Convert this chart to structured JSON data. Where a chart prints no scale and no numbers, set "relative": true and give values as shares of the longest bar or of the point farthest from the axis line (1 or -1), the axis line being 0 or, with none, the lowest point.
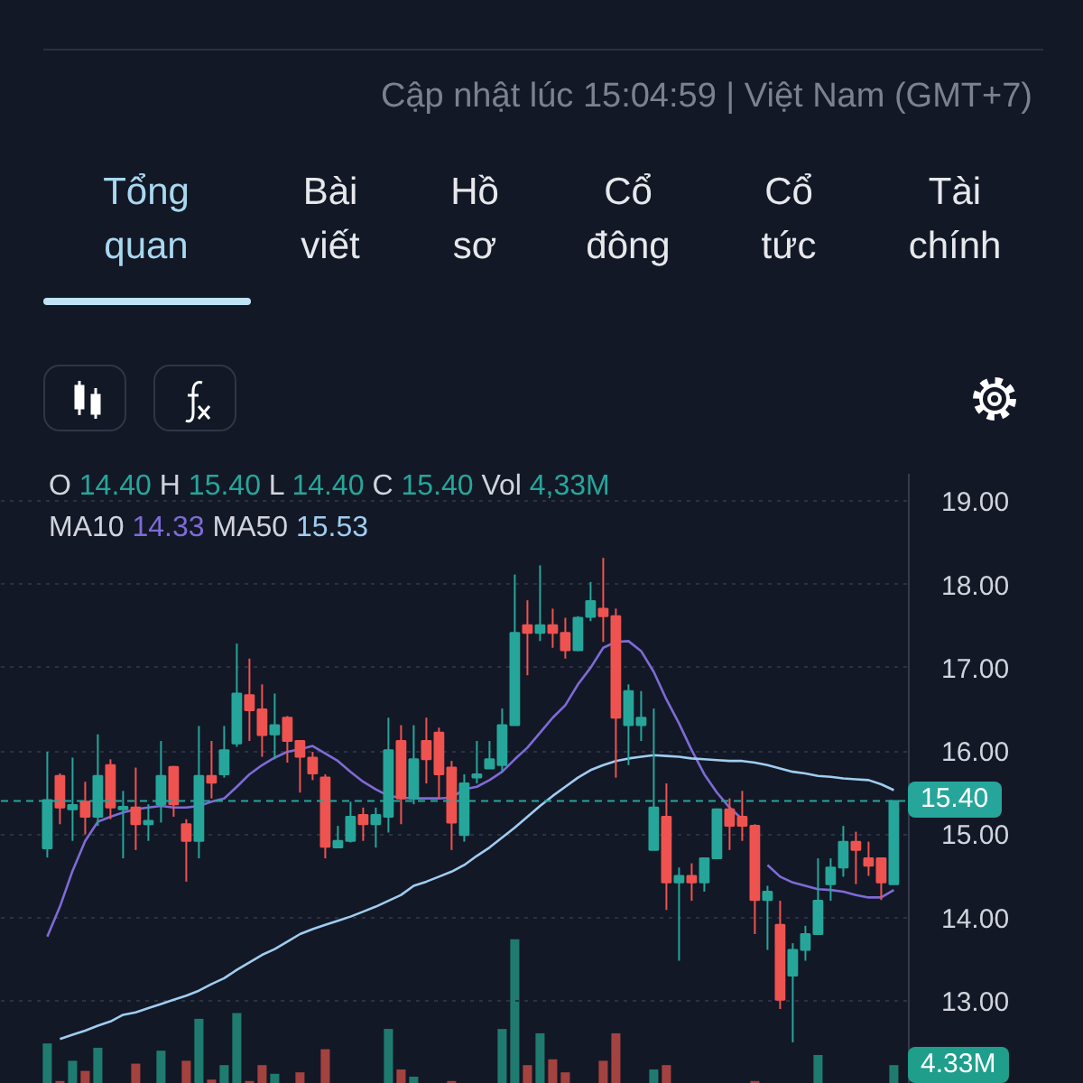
{
  "chart_data": [
    {
      "type": "candlestick",
      "subtitle": "Cập nhật lúc 15:04:59 | Việt Nam (GMT+7)",
      "annotations": [
        "Tổng quan",
        "Bài viết",
        "Hồ sơ",
        "Cổ đông",
        "Cổ tức",
        "Tài chính",
        "O 14.40 H 15.40 L 14.40 C 15.40 Vol 4,33M",
        "MA10 14.33 MA50 15.53"
      ],
      "categories": [
        null,
        null,
        null,
        null,
        null,
        null,
        null,
        null,
        null,
        null,
        null,
        null,
        null,
        null,
        null,
        null,
        null,
        null,
        null,
        null,
        null,
        null,
        null,
        null,
        null,
        null,
        null,
        null,
        null,
        null,
        null,
        null,
        null,
        null,
        null,
        null,
        null,
        null,
        null,
        null,
        null,
        null,
        null,
        null,
        null,
        null,
        null,
        null,
        null,
        null,
        null,
        null,
        null,
        null,
        null,
        null,
        null,
        null,
        null,
        null,
        null,
        null,
        null,
        null,
        null,
        null,
        null,
        null
      ],
      "ohlc": [
        [
          14.83,
          15.99,
          14.72,
          15.41
        ],
        [
          15.7,
          15.73,
          15.12,
          15.32
        ],
        [
          15.3,
          15.92,
          14.92,
          15.35
        ],
        [
          15.39,
          15.63,
          15.0,
          15.21
        ],
        [
          15.21,
          16.2,
          15.1,
          15.7
        ],
        [
          15.83,
          15.9,
          15.18,
          15.32
        ],
        [
          15.3,
          15.52,
          14.71,
          15.33
        ],
        [
          15.32,
          15.8,
          14.81,
          15.12
        ],
        [
          15.12,
          15.36,
          14.92,
          15.16
        ],
        [
          15.36,
          16.12,
          15.14,
          15.7
        ],
        [
          15.81,
          15.82,
          15.21,
          15.36
        ],
        [
          15.12,
          15.18,
          14.43,
          14.92
        ],
        [
          14.92,
          16.3,
          14.71,
          15.7
        ],
        [
          15.7,
          16.12,
          15.43,
          15.62
        ],
        [
          15.72,
          16.3,
          15.68,
          16.01
        ],
        [
          16.09,
          17.29,
          16.05,
          16.69
        ],
        [
          16.67,
          17.11,
          16.12,
          16.49
        ],
        [
          16.5,
          16.8,
          15.93,
          16.19
        ],
        [
          16.2,
          16.69,
          15.9,
          16.31
        ],
        [
          16.4,
          16.42,
          15.86,
          16.12
        ],
        [
          16.12,
          16.13,
          15.5,
          15.93
        ],
        [
          15.92,
          15.99,
          15.65,
          15.73
        ],
        [
          15.68,
          15.72,
          14.71,
          14.85
        ],
        [
          14.84,
          15.1,
          14.83,
          14.92
        ],
        [
          14.92,
          15.39,
          14.9,
          15.21
        ],
        [
          15.23,
          15.32,
          14.92,
          15.12
        ],
        [
          15.12,
          15.32,
          14.84,
          15.23
        ],
        [
          15.21,
          16.4,
          15.02,
          16.01
        ],
        [
          16.12,
          16.31,
          15.12,
          15.43
        ],
        [
          15.43,
          16.31,
          15.36,
          15.9
        ],
        [
          16.12,
          16.4,
          15.61,
          15.9
        ],
        [
          16.22,
          16.28,
          15.43,
          15.72
        ],
        [
          15.8,
          15.88,
          14.81,
          15.14
        ],
        [
          14.99,
          15.72,
          14.91,
          15.61
        ],
        [
          15.68,
          16.12,
          15.61,
          15.72
        ],
        [
          15.79,
          16.12,
          15.79,
          15.9
        ],
        [
          15.83,
          16.51,
          15.75,
          16.31
        ],
        [
          16.31,
          18.12,
          16.31,
          17.42
        ],
        [
          17.51,
          17.81,
          16.91,
          17.42
        ],
        [
          17.42,
          18.23,
          17.32,
          17.51
        ],
        [
          17.51,
          17.71,
          17.24,
          17.42
        ],
        [
          17.42,
          17.6,
          17.11,
          17.21
        ],
        [
          17.21,
          17.62,
          17.2,
          17.6
        ],
        [
          17.61,
          18.03,
          17.56,
          17.8
        ],
        [
          17.71,
          18.32,
          17.31,
          17.62
        ],
        [
          17.62,
          17.71,
          15.68,
          16.4
        ],
        [
          16.31,
          16.8,
          15.83,
          16.72
        ],
        [
          16.31,
          16.72,
          16.12,
          16.4
        ],
        [
          14.81,
          16.51,
          14.81,
          15.32
        ],
        [
          15.21,
          15.61,
          14.09,
          14.42
        ],
        [
          14.42,
          14.6,
          13.48,
          14.5
        ],
        [
          14.5,
          14.65,
          14.2,
          14.42
        ],
        [
          14.42,
          14.72,
          14.31,
          14.71
        ],
        [
          14.71,
          15.31,
          14.7,
          15.3
        ],
        [
          15.3,
          15.43,
          14.81,
          15.1
        ],
        [
          15.21,
          15.52,
          14.92,
          15.1
        ],
        [
          15.1,
          15.12,
          13.8,
          14.21
        ],
        [
          14.21,
          14.38,
          13.61,
          14.31
        ],
        [
          13.91,
          14.2,
          12.9,
          13.01
        ],
        [
          13.3,
          13.69,
          12.5,
          13.61
        ],
        [
          13.61,
          13.9,
          13.48,
          13.8
        ],
        [
          13.8,
          14.71,
          13.8,
          14.2
        ],
        [
          14.4,
          14.71,
          14.2,
          14.6
        ],
        [
          14.6,
          15.1,
          14.49,
          14.91
        ],
        [
          14.91,
          15.03,
          14.4,
          14.81
        ],
        [
          14.71,
          14.91,
          14.5,
          14.62
        ],
        [
          14.71,
          14.72,
          14.21,
          14.42
        ],
        [
          14.4,
          15.4,
          14.4,
          15.4
        ]
      ],
      "colors": [
        "#26a69a",
        "#ef5350",
        "#26a69a",
        "#ef5350",
        "#26a69a",
        "#ef5350",
        "#26a69a",
        "#ef5350",
        "#26a69a",
        "#26a69a",
        "#ef5350",
        "#ef5350",
        "#26a69a",
        "#ef5350",
        "#26a69a",
        "#26a69a",
        "#ef5350",
        "#ef5350",
        "#26a69a",
        "#ef5350",
        "#ef5350",
        "#ef5350",
        "#ef5350",
        "#26a69a",
        "#26a69a",
        "#ef5350",
        "#26a69a",
        "#26a69a",
        "#ef5350",
        "#26a69a",
        "#ef5350",
        "#ef5350",
        "#ef5350",
        "#26a69a",
        "#26a69a",
        "#26a69a",
        "#26a69a",
        "#26a69a",
        "#ef5350",
        "#26a69a",
        "#ef5350",
        "#ef5350",
        "#26a69a",
        "#26a69a",
        "#ef5350",
        "#ef5350",
        "#26a69a",
        "#26a69a",
        "#26a69a",
        "#ef5350",
        "#26a69a",
        "#ef5350",
        "#26a69a",
        "#26a69a",
        "#ef5350",
        "#ef5350",
        "#ef5350",
        "#26a69a",
        "#ef5350",
        "#26a69a",
        "#26a69a",
        "#26a69a",
        "#26a69a",
        "#26a69a",
        "#ef5350",
        "#ef5350",
        "#ef5350",
        "#26a69a"
      ],
      "series": [
        {
          "type": "line",
          "color": "#7e6bd6",
          "values": [
            13.77,
            14.13,
            14.56,
            14.92,
            15.15,
            15.21,
            15.26,
            15.3,
            15.32,
            15.34,
            15.32,
            15.32,
            15.34,
            15.39,
            15.43,
            15.57,
            15.72,
            15.83,
            15.92,
            15.99,
            16.02,
            16.06,
            15.97,
            15.88,
            15.75,
            15.63,
            15.54,
            15.46,
            15.44,
            15.43,
            15.43,
            15.43,
            15.44,
            15.54,
            15.57,
            15.65,
            15.75,
            15.9,
            16.04,
            16.22,
            16.4,
            16.55,
            16.8,
            17.0,
            17.24,
            17.31,
            17.32,
            17.2,
            16.95,
            16.62,
            16.33,
            16.01,
            15.72,
            15.5,
            15.32,
            15.18,
            null,
            14.63,
            14.49,
            14.42,
            14.38,
            14.34,
            14.33,
            14.31,
            14.27,
            14.24,
            14.24,
            14.33
          ]
        },
        {
          "type": "line",
          "color": "#9fcdf0",
          "values": [
            null,
            12.54,
            12.59,
            12.64,
            12.7,
            12.75,
            12.83,
            12.86,
            12.91,
            12.96,
            13.01,
            13.06,
            13.12,
            13.2,
            13.27,
            13.37,
            13.46,
            13.55,
            13.62,
            13.71,
            13.8,
            13.86,
            13.91,
            13.96,
            14.01,
            14.07,
            14.13,
            14.2,
            14.27,
            14.38,
            14.43,
            14.49,
            14.55,
            14.63,
            14.74,
            14.84,
            14.96,
            15.08,
            15.21,
            15.34,
            15.46,
            15.57,
            15.68,
            15.77,
            15.83,
            15.88,
            15.91,
            15.93,
            15.95,
            15.94,
            15.93,
            15.91,
            15.9,
            15.89,
            15.88,
            15.88,
            15.86,
            15.83,
            15.79,
            15.75,
            15.73,
            15.7,
            15.69,
            15.67,
            15.66,
            15.65,
            15.6,
            15.53
          ]
        }
      ],
      "ylim": [
        12,
        19.33
      ],
      "yticks": [
        {
          "value": 13,
          "label": "13.00"
        },
        {
          "value": 14,
          "label": "14.00"
        },
        {
          "value": 15,
          "label": "15.00"
        },
        {
          "value": 16,
          "label": "16.00"
        },
        {
          "value": 17,
          "label": "17.00"
        },
        {
          "value": 18,
          "label": "18.00"
        },
        {
          "value": 19,
          "label": "19.00"
        }
      ],
      "ref_lines": [
        {
          "axis": "y",
          "value": 15.4,
          "label": "15.40",
          "color": "#26a69a",
          "line_style": "dashed"
        }
      ],
      "grid": "y",
      "tick_labels": "y"
    },
    {
      "type": "bar",
      "relative": true,
      "categories": [
        null,
        null,
        null,
        null,
        null,
        null,
        null,
        null,
        null,
        null,
        null,
        null,
        null,
        null,
        null,
        null,
        null,
        null,
        null,
        null,
        null,
        null,
        null,
        null,
        null,
        null,
        null,
        null,
        null,
        null,
        null,
        null,
        null,
        null,
        null,
        null,
        null,
        null,
        null,
        null,
        null,
        null,
        null,
        null,
        null,
        null,
        null,
        null,
        null,
        null,
        null,
        null,
        null,
        null,
        null,
        null,
        null,
        null,
        null,
        null,
        null,
        null,
        null,
        null,
        null,
        null,
        null,
        null
      ],
      "values": [
        0.28,
        0.02,
        0.16,
        0.09,
        0.25,
        null,
        null,
        0.14,
        null,
        0.23,
        null,
        0.16,
        0.45,
        0.03,
        0.13,
        0.49,
        0.02,
        0.13,
        0.07,
        null,
        0.08,
        null,
        0.24,
        null,
        null,
        null,
        null,
        0.38,
        0.1,
        0.05,
        null,
        null,
        0.02,
        null,
        null,
        null,
        0.38,
        1,
        0.13,
        0.35,
        0.17,
        0.08,
        null,
        null,
        0.16,
        0.35,
        null,
        null,
        0.1,
        0.13,
        null,
        null,
        null,
        null,
        null,
        null,
        0.02,
        null,
        null,
        null,
        null,
        0.2,
        null,
        null,
        null,
        null,
        null,
        0.13
      ],
      "colors": [
        "#1f7b70",
        "#a4423f",
        "#1f7b70",
        "#a4423f",
        "#1f7b70",
        "#a4423f",
        "#1f7b70",
        "#a4423f",
        "#1f7b70",
        "#1f7b70",
        "#a4423f",
        "#a4423f",
        "#1f7b70",
        "#a4423f",
        "#1f7b70",
        "#1f7b70",
        "#a4423f",
        "#a4423f",
        "#1f7b70",
        "#a4423f",
        "#a4423f",
        "#a4423f",
        "#a4423f",
        "#1f7b70",
        "#1f7b70",
        "#a4423f",
        "#1f7b70",
        "#1f7b70",
        "#a4423f",
        "#1f7b70",
        "#a4423f",
        "#a4423f",
        "#a4423f",
        "#1f7b70",
        "#1f7b70",
        "#1f7b70",
        "#1f7b70",
        "#1f7b70",
        "#a4423f",
        "#1f7b70",
        "#a4423f",
        "#a4423f",
        "#1f7b70",
        "#1f7b70",
        "#a4423f",
        "#a4423f",
        "#1f7b70",
        "#1f7b70",
        "#1f7b70",
        "#a4423f",
        "#1f7b70",
        "#a4423f",
        "#1f7b70",
        "#1f7b70",
        "#a4423f",
        "#a4423f",
        "#a4423f",
        "#1f7b70",
        "#a4423f",
        "#1f7b70",
        "#1f7b70",
        "#1f7b70",
        "#1f7b70",
        "#1f7b70",
        "#a4423f",
        "#a4423f",
        "#a4423f",
        "#1f7b70"
      ],
      "annotations": [
        "4.33M"
      ]
    }
  ]
}
